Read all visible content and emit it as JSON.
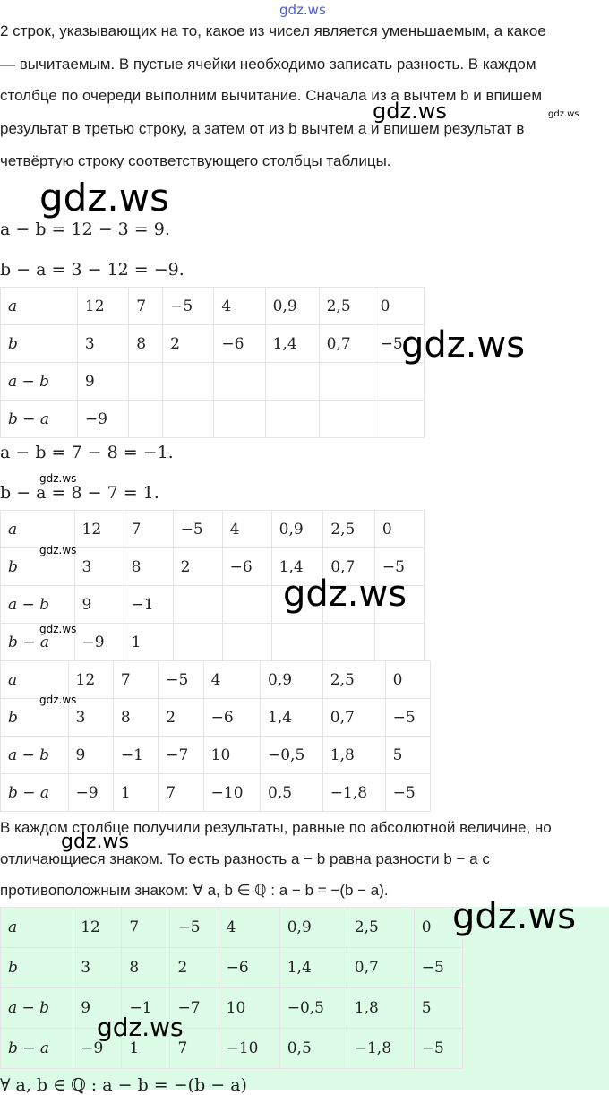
{
  "watermark": "gdz.ws",
  "intro": [
    "2 строк, указывающих на то, какое из чисел является уменьшаемым, а какое",
    "— вычитаемым. В пустые ячейки необходимо записать разность. В каждом",
    "столбце по очереди выполним вычитание. Сначала из a вычтем b и впишем",
    "результат в третью строку, а затем от из b вычтем a и впишем результат в",
    "четвёртую строку соответствующего столбцы таблицы."
  ],
  "eq1": "a − b = 12 − 3 = 9.",
  "eq2": "b − a = 3 − 12 = −9.",
  "eq3": "a − b = 7 − 8 = −1.",
  "eq4": "b − a = 8 − 7 = 1.",
  "tables": [
    [
      [
        "a",
        "12",
        "7",
        "−5",
        "4",
        "0,9",
        "2,5",
        "0"
      ],
      [
        "b",
        "3",
        "8",
        "2",
        "−6",
        "1,4",
        "0,7",
        "−5"
      ],
      [
        "a − b",
        "9",
        "",
        "",
        "",
        "",
        "",
        ""
      ],
      [
        "b − a",
        "−9",
        "",
        "",
        "",
        "",
        "",
        ""
      ]
    ],
    [
      [
        "a",
        "12",
        "7",
        "−5",
        "4",
        "0,9",
        "2,5",
        "0"
      ],
      [
        "b",
        "3",
        "8",
        "2",
        "−6",
        "1,4",
        "0,7",
        "−5"
      ],
      [
        "a − b",
        "9",
        "−1",
        "",
        "",
        "",
        "",
        ""
      ],
      [
        "b − a",
        "−9",
        "1",
        "",
        "",
        "",
        "",
        ""
      ]
    ],
    [
      [
        "a",
        "12",
        "7",
        "−5",
        "4",
        "0,9",
        "2,5",
        "0"
      ],
      [
        "b",
        "3",
        "8",
        "2",
        "−6",
        "1,4",
        "0,7",
        "−5"
      ],
      [
        "a − b",
        "9",
        "−1",
        "−7",
        "10",
        "−0,5",
        "1,8",
        "5"
      ],
      [
        "b − a",
        "−9",
        "1",
        "7",
        "−10",
        "0,5",
        "−1,8",
        "−5"
      ]
    ],
    [
      [
        "a",
        "12",
        "7",
        "−5",
        "4",
        "0,9",
        "2,5",
        "0"
      ],
      [
        "b",
        "3",
        "8",
        "2",
        "−6",
        "1,4",
        "0,7",
        "−5"
      ],
      [
        "a − b",
        "9",
        "−1",
        "−7",
        "10",
        "−0,5",
        "1,8",
        "5"
      ],
      [
        "b − a",
        "−9",
        "1",
        "7",
        "−10",
        "0,5",
        "−1,8",
        "−5"
      ]
    ]
  ],
  "conclusion": [
    "В каждом столбце получили результаты, равные по абсолютной величине, но",
    "отличающиеся знаком. То есть разность a − b равна разности b − a с",
    "противоположным знаком: ∀ a, b ∈ ℚ : a − b = −(b − a)."
  ],
  "final": "∀ a, b ∈ ℚ : a − b = −(b − a)",
  "colors": {
    "highlight": "#dcfce7"
  }
}
